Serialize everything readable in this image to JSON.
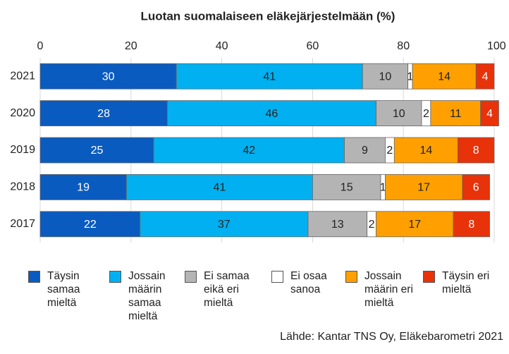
{
  "chart_data": {
    "type": "stacked-bar-horizontal",
    "title": "Luotan suomalaiseen eläkejärjestelmään (%)",
    "categories": [
      "2021",
      "2020",
      "2019",
      "2018",
      "2017"
    ],
    "series": [
      {
        "name": "Täysin samaa mieltä",
        "color": "#0a5bbf",
        "values": [
          30,
          28,
          25,
          19,
          22
        ]
      },
      {
        "name": "Jossain määrin samaa mieltä",
        "color": "#00b0f0",
        "values": [
          41,
          46,
          42,
          41,
          37
        ]
      },
      {
        "name": "Ei samaa eikä eri mieltä",
        "color": "#b4b4b4",
        "values": [
          10,
          10,
          9,
          15,
          13
        ]
      },
      {
        "name": "Ei osaa sanoa",
        "color": "#ffffff",
        "values": [
          1,
          2,
          2,
          1,
          2
        ]
      },
      {
        "name": "Jossain määrin eri mieltä",
        "color": "#ffa000",
        "values": [
          14,
          11,
          14,
          17,
          17
        ]
      },
      {
        "name": "Täysin eri mieltä",
        "color": "#e8320a",
        "values": [
          4,
          4,
          8,
          6,
          8
        ]
      }
    ],
    "xlim": [
      0,
      100
    ],
    "xticks": [
      0,
      20,
      40,
      60,
      80,
      {
        "value": 100,
        "label": "100 %"
      }
    ],
    "grid": true,
    "source": "Lähde: Kantar TNS Oy, Eläkebarometri 2021"
  }
}
